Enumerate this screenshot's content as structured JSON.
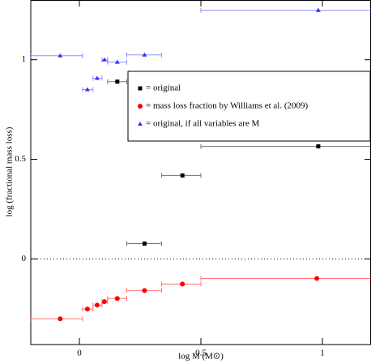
{
  "chart_data": {
    "type": "scatter",
    "xlabel": "log M (M⊙)",
    "ylabel": "log (fractional mass loss)",
    "xlim": [
      -0.2,
      1.2
    ],
    "ylim": [
      -0.43,
      1.3
    ],
    "xticks": [
      0,
      0.5,
      1
    ],
    "yticks": [
      0,
      0.5,
      1
    ],
    "zero_line": true,
    "legend": "right",
    "series": [
      {
        "name": "= original",
        "color": "#000000",
        "marker": "square",
        "x": [
          0.156,
          0.268,
          0.424,
          0.983
        ],
        "values": [
          0.89,
          0.077,
          0.419,
          0.565
        ],
        "x_lo": [
          0.116,
          0.195,
          0.338,
          0.5
        ],
        "x_hi": [
          0.195,
          0.338,
          0.5,
          1.2
        ]
      },
      {
        "name": "= mass loss fraction by Williams et al. (2009)",
        "color": "#ff0000",
        "marker": "circle",
        "x": [
          -0.079,
          0.033,
          0.073,
          0.103,
          0.156,
          0.268,
          0.424,
          0.977
        ],
        "values": [
          -0.301,
          -0.252,
          -0.232,
          -0.215,
          -0.199,
          -0.159,
          -0.126,
          -0.098
        ],
        "x_lo": [
          -0.2,
          0.013,
          0.056,
          0.093,
          0.116,
          0.195,
          0.338,
          0.5
        ],
        "x_hi": [
          0.013,
          0.056,
          0.093,
          0.116,
          0.195,
          0.338,
          0.5,
          1.2
        ]
      },
      {
        "name": "= original, if all variables are M",
        "color": "#3030ff",
        "marker": "triangle",
        "x": [
          -0.079,
          0.033,
          0.073,
          0.103,
          0.156,
          0.268,
          0.983
        ],
        "values": [
          1.02,
          0.85,
          0.907,
          1.0,
          0.988,
          1.024,
          1.248
        ],
        "x_lo": [
          -0.2,
          0.013,
          0.056,
          0.093,
          0.116,
          0.195,
          0.5
        ],
        "x_hi": [
          0.013,
          0.056,
          0.093,
          0.116,
          0.195,
          0.338,
          1.2
        ]
      }
    ]
  }
}
